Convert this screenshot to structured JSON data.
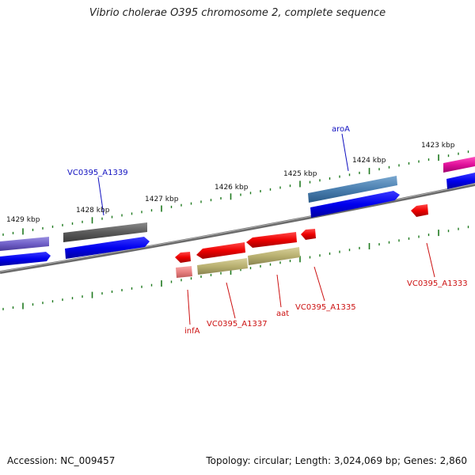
{
  "title": "Vibrio cholerae O395 chromosome 2, complete sequence",
  "footer": {
    "accession": "Accession: NC_009457",
    "summary": "Topology: circular; Length: 3,024,069 bp; Genes: 2,860"
  },
  "kbp_labels": [
    "1429 kbp",
    "1428 kbp",
    "1427 kbp",
    "1426 kbp",
    "1425 kbp",
    "1424 kbp",
    "1423 kbp"
  ],
  "gene_labels": {
    "top": [
      {
        "text": "VC0395_A1339",
        "color": "#1010c0"
      },
      {
        "text": "aroA",
        "color": "#1010c0"
      }
    ],
    "bottom": [
      {
        "text": "infA",
        "color": "#cc1010"
      },
      {
        "text": "VC0395_A1337",
        "color": "#cc1010"
      },
      {
        "text": "aat",
        "color": "#cc1010"
      },
      {
        "text": "VC0395_A1335",
        "color": "#cc1010"
      },
      {
        "text": "VC0395_A1333",
        "color": "#cc1010"
      }
    ]
  },
  "colors": {
    "backbone": "#7a7a7a",
    "tick": "#1f7a1f",
    "forward_cds": "#0000ee",
    "reverse_cds": "#ee0000",
    "gray_gene": "#5a5a5a",
    "steelblue_gene": "#4a7fb0",
    "purple_gene": "#7060c8",
    "magenta_gene": "#e0109a",
    "olive_gene": "#b8b070",
    "pink_gene": "#e88080"
  }
}
